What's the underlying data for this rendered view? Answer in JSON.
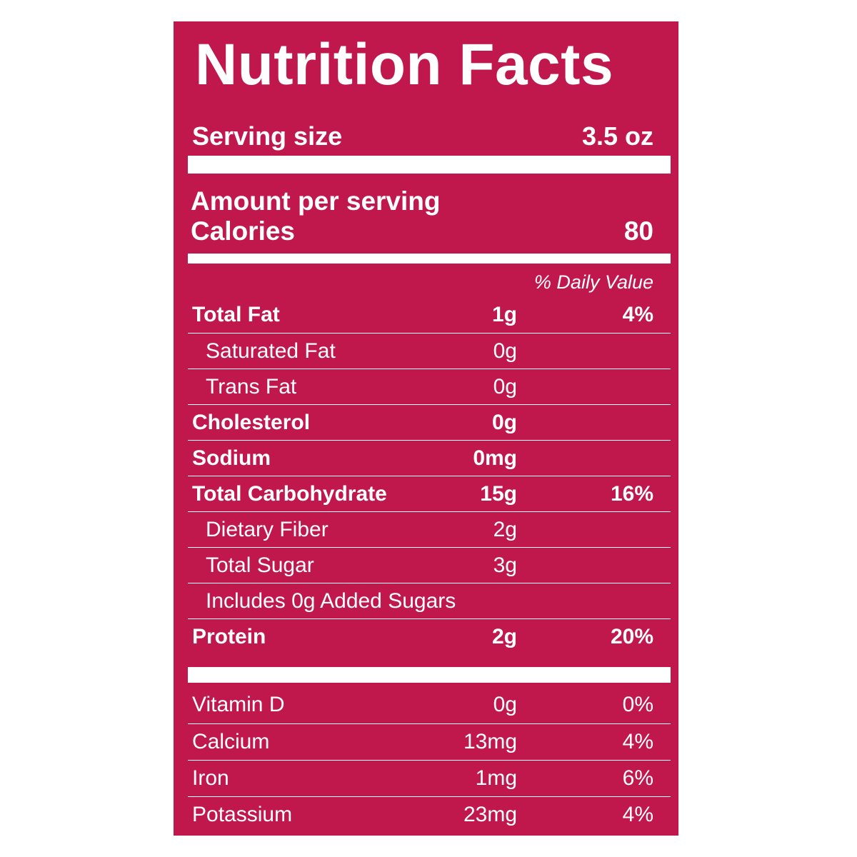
{
  "label": {
    "title": "Nutrition Facts",
    "serving_size_label": "Serving size",
    "serving_size_value": "3.5 oz",
    "amount_per_serving": "Amount per serving",
    "calories_label": "Calories",
    "calories_value": "80",
    "daily_value_header": "% Daily Value",
    "colors": {
      "panel": "#c0184d",
      "text": "#ffffff"
    }
  },
  "nutrients": [
    {
      "name": "Total Fat",
      "amount": "1g",
      "dv": "4%"
    },
    {
      "name": "Saturated Fat",
      "amount": "0g",
      "dv": ""
    },
    {
      "name": "Trans Fat",
      "amount": "0g",
      "dv": ""
    },
    {
      "name": "Cholesterol",
      "amount": "0g",
      "dv": ""
    },
    {
      "name": "Sodium",
      "amount": "0mg",
      "dv": ""
    },
    {
      "name": "Total Carbohydrate",
      "amount": "15g",
      "dv": "16%"
    },
    {
      "name": "Dietary Fiber",
      "amount": "2g",
      "dv": ""
    },
    {
      "name": "Total Sugar",
      "amount": "3g",
      "dv": ""
    },
    {
      "name": "Includes 0g Added Sugars",
      "amount": "",
      "dv": ""
    },
    {
      "name": "Protein",
      "amount": "2g",
      "dv": "20%"
    }
  ],
  "vitamins": [
    {
      "name": "Vitamin D",
      "amount": "0g",
      "dv": "0%"
    },
    {
      "name": "Calcium",
      "amount": "13mg",
      "dv": "4%"
    },
    {
      "name": "Iron",
      "amount": "1mg",
      "dv": "6%"
    },
    {
      "name": "Potassium",
      "amount": "23mg",
      "dv": "4%"
    }
  ]
}
